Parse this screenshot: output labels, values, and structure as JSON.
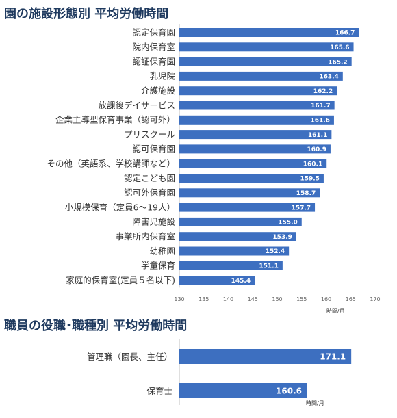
{
  "chart_data": [
    {
      "type": "bar",
      "orientation": "horizontal",
      "title": "園の施設形態別 平均労働時間",
      "unit": "時間/月",
      "xlim": [
        130,
        170
      ],
      "ticks": [
        130,
        135,
        140,
        145,
        150,
        155,
        160,
        165,
        170
      ],
      "grid": false,
      "color": "#3d6fc0",
      "categories": [
        "認定保育園",
        "院内保育室",
        "認証保育園",
        "乳児院",
        "介護施設",
        "放課後デイサービス",
        "企業主導型保育事業（認可外）",
        "プリスクール",
        "認可保育園",
        "その他（英語系、学校講師など）",
        "認定こども園",
        "認可外保育園",
        "小規模保育（定員6〜19人）",
        "障害児施設",
        "事業所内保育室",
        "幼稚園",
        "学童保育",
        "家庭的保育室(定員５名以下)"
      ],
      "values": [
        166.7,
        165.6,
        165.2,
        163.4,
        162.2,
        161.7,
        161.6,
        161.1,
        160.9,
        160.1,
        159.5,
        158.7,
        157.7,
        155.0,
        153.9,
        152.4,
        151.1,
        145.4
      ],
      "value_labels": [
        "166.7",
        "165.6",
        "165.2",
        "163.4",
        "162.2",
        "161.7",
        "161.6",
        "161.1",
        "160.9",
        "160.1",
        "159.5",
        "158.7",
        "157.7",
        "155.0",
        "153.9",
        "152.4",
        "151.1",
        "145.4"
      ]
    },
    {
      "type": "bar",
      "orientation": "horizontal",
      "title": "職員の役職･職種別 平均労働時間",
      "unit": "時間/月",
      "xlim": [
        130,
        175
      ],
      "grid": false,
      "color": "#3d6fc0",
      "categories": [
        "管理職（園長、主任）",
        "保育士"
      ],
      "values": [
        171.1,
        160.6
      ],
      "value_labels": [
        "171.1",
        "160.6"
      ]
    }
  ]
}
